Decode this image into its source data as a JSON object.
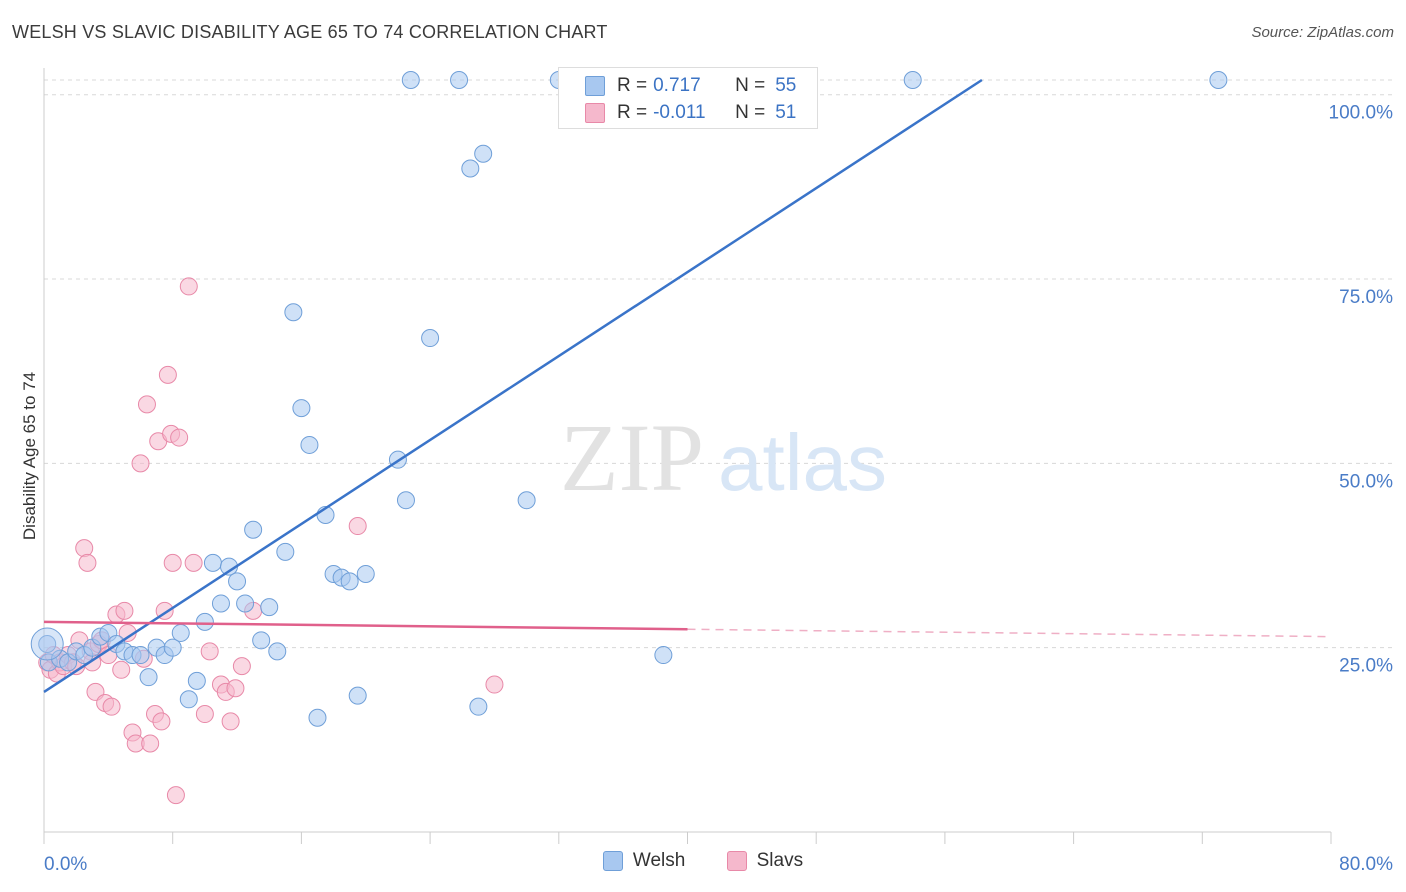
{
  "title": "WELSH VS SLAVIC DISABILITY AGE 65 TO 74 CORRELATION CHART",
  "source": "Source: ZipAtlas.com",
  "watermark": {
    "zip": "ZIP",
    "atlas": "atlas"
  },
  "colors": {
    "welsh_fill": "#a8c8f0",
    "welsh_stroke": "#6f9fd8",
    "welsh_line": "#3a74c9",
    "slavs_fill": "#f5b8cc",
    "slavs_stroke": "#e889a8",
    "slavs_line": "#e0608b",
    "grid": "#d8d8d8",
    "tick_label": "#4a7cc7"
  },
  "stats": {
    "rows": [
      {
        "r_label": "R =",
        "r_value": "0.717",
        "n_label": "N =",
        "n_value": "55"
      },
      {
        "r_label": "R =",
        "r_value": "-0.011",
        "n_label": "N =",
        "n_value": "51"
      }
    ]
  },
  "chart_data": {
    "type": "scatter",
    "title": "WELSH VS SLAVIC DISABILITY AGE 65 TO 74 CORRELATION CHART",
    "xlabel": "",
    "ylabel": "Disability Age 65 to 74",
    "xlim": [
      0,
      80
    ],
    "ylim": [
      0,
      102
    ],
    "x_tick_labels": [
      "0.0%",
      "80.0%"
    ],
    "y_ticks": [
      25,
      50,
      75,
      100
    ],
    "y_tick_labels": [
      "25.0%",
      "50.0%",
      "75.0%",
      "100.0%"
    ],
    "grid": true,
    "legend_position": "bottom",
    "series": [
      {
        "name": "Welsh",
        "r": 0.717,
        "n": 55,
        "trend": {
          "x": [
            0,
            58.3
          ],
          "y": [
            19,
            102
          ]
        },
        "points": [
          [
            0.2,
            25.5
          ],
          [
            0.3,
            23
          ],
          [
            1,
            23.5
          ],
          [
            1.5,
            23
          ],
          [
            2,
            24.5
          ],
          [
            2.5,
            24
          ],
          [
            3,
            25
          ],
          [
            3.5,
            26.5
          ],
          [
            4,
            27
          ],
          [
            4.5,
            25.5
          ],
          [
            5,
            24.5
          ],
          [
            5.5,
            24
          ],
          [
            6,
            24
          ],
          [
            6.5,
            21
          ],
          [
            7,
            25
          ],
          [
            7.5,
            24
          ],
          [
            8,
            25
          ],
          [
            8.5,
            27
          ],
          [
            9,
            18
          ],
          [
            9.5,
            20.5
          ],
          [
            10,
            28.5
          ],
          [
            10.5,
            36.5
          ],
          [
            11,
            31
          ],
          [
            11.5,
            36
          ],
          [
            12,
            34
          ],
          [
            12.5,
            31
          ],
          [
            13,
            41
          ],
          [
            13.5,
            26
          ],
          [
            14,
            30.5
          ],
          [
            14.5,
            24.5
          ],
          [
            15,
            38
          ],
          [
            15.5,
            70.5
          ],
          [
            16,
            57.5
          ],
          [
            16.5,
            52.5
          ],
          [
            17,
            15.5
          ],
          [
            17.5,
            43
          ],
          [
            18,
            35
          ],
          [
            18.5,
            34.5
          ],
          [
            19,
            34
          ],
          [
            19.5,
            18.5
          ],
          [
            20,
            35
          ],
          [
            22,
            50.5
          ],
          [
            22.5,
            45
          ],
          [
            22.8,
            102
          ],
          [
            24,
            67
          ],
          [
            25.8,
            102
          ],
          [
            26.5,
            90
          ],
          [
            27,
            17
          ],
          [
            27.3,
            92
          ],
          [
            30,
            45
          ],
          [
            32,
            102
          ],
          [
            35,
            102
          ],
          [
            38.5,
            24
          ],
          [
            54,
            102
          ],
          [
            73,
            102
          ]
        ]
      },
      {
        "name": "Slavs",
        "r": -0.011,
        "n": 51,
        "trend": {
          "x": [
            0,
            80
          ],
          "y": [
            28.5,
            26.5
          ],
          "solid_until_x": 40
        },
        "points": [
          [
            0.2,
            23
          ],
          [
            0.4,
            22
          ],
          [
            0.6,
            24
          ],
          [
            0.8,
            21.5
          ],
          [
            1,
            23
          ],
          [
            1.2,
            22.5
          ],
          [
            1.5,
            24
          ],
          [
            1.8,
            23
          ],
          [
            2,
            22.5
          ],
          [
            2.2,
            26
          ],
          [
            2.5,
            38.5
          ],
          [
            2.7,
            36.5
          ],
          [
            2.9,
            24.5
          ],
          [
            3,
            23
          ],
          [
            3.2,
            19
          ],
          [
            3.4,
            25.5
          ],
          [
            3.6,
            26
          ],
          [
            3.8,
            17.5
          ],
          [
            4,
            24
          ],
          [
            4.2,
            17
          ],
          [
            4.5,
            29.5
          ],
          [
            4.8,
            22
          ],
          [
            5,
            30
          ],
          [
            5.2,
            27
          ],
          [
            5.5,
            13.5
          ],
          [
            5.7,
            12
          ],
          [
            6,
            50
          ],
          [
            6.2,
            23.5
          ],
          [
            6.4,
            58
          ],
          [
            6.6,
            12
          ],
          [
            6.9,
            16
          ],
          [
            7.1,
            53
          ],
          [
            7.3,
            15
          ],
          [
            7.5,
            30
          ],
          [
            7.7,
            62
          ],
          [
            7.9,
            54
          ],
          [
            8,
            36.5
          ],
          [
            8.2,
            5
          ],
          [
            8.4,
            53.5
          ],
          [
            9,
            74
          ],
          [
            9.3,
            36.5
          ],
          [
            10,
            16
          ],
          [
            10.3,
            24.5
          ],
          [
            11,
            20
          ],
          [
            11.3,
            19
          ],
          [
            11.6,
            15
          ],
          [
            11.9,
            19.5
          ],
          [
            12.3,
            22.5
          ],
          [
            13,
            30
          ],
          [
            19.5,
            41.5
          ],
          [
            28,
            20
          ]
        ]
      }
    ]
  }
}
